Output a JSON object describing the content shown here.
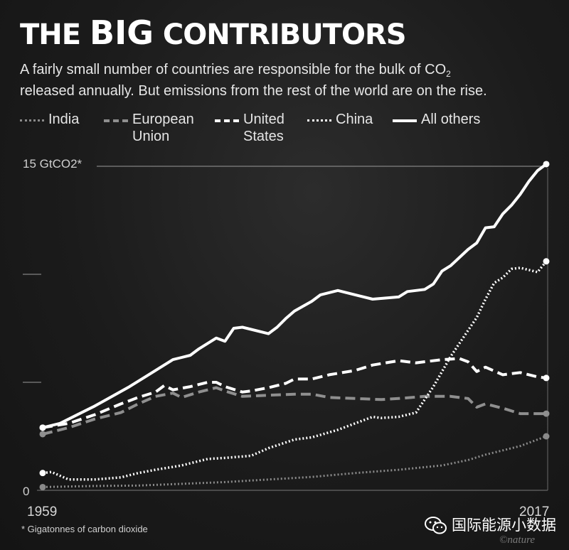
{
  "title": {
    "prefix": "THE",
    "emphasis": "BIG",
    "suffix": "CONTRIBUTORS"
  },
  "subtitle": {
    "line1_before": "A fairly small number of countries are responsible for the bulk of CO",
    "line1_sub": "2",
    "line2": "released annually. But emissions from the rest of the world are on the rise."
  },
  "legend": {
    "india": "India",
    "eu_line1": "European",
    "eu_line2": "Union",
    "us_line1": "United",
    "us_line2": "States",
    "china": "China",
    "others": "All others"
  },
  "footnote": "* Gigatonnes of carbon dioxide",
  "credit": "©nature",
  "watermark": "国际能源小数据",
  "colors": {
    "background": "#1b1b1b",
    "primary": "#ffffff",
    "secondary": "#8f8f8f"
  },
  "chart_data": {
    "type": "line",
    "title": "THE BIG CONTRIBUTORS",
    "ylabel": "15 GtCO2*",
    "y_tick_labels": {
      "bottom": "0",
      "top": "15 GtCO2*"
    },
    "x_tick_labels": {
      "start": "1959",
      "end": "2017"
    },
    "xlim": [
      1959,
      2017
    ],
    "ylim": [
      0,
      15
    ],
    "yticks": [
      0,
      5,
      10,
      15
    ],
    "grid": false,
    "legend_position": "top",
    "series": [
      {
        "name": "India",
        "style": "dotted-gray",
        "points": [
          [
            1959,
            0.15
          ],
          [
            1965,
            0.2
          ],
          [
            1970,
            0.22
          ],
          [
            1975,
            0.3
          ],
          [
            1980,
            0.38
          ],
          [
            1985,
            0.5
          ],
          [
            1990,
            0.62
          ],
          [
            1995,
            0.8
          ],
          [
            2000,
            0.95
          ],
          [
            2005,
            1.15
          ],
          [
            2008,
            1.4
          ],
          [
            2010,
            1.65
          ],
          [
            2012,
            1.85
          ],
          [
            2014,
            2.05
          ],
          [
            2017,
            2.5
          ]
        ]
      },
      {
        "name": "European Union",
        "style": "dashed-gray",
        "points": [
          [
            1959,
            2.6
          ],
          [
            1962,
            2.9
          ],
          [
            1965,
            3.3
          ],
          [
            1968,
            3.6
          ],
          [
            1970,
            4.0
          ],
          [
            1972,
            4.35
          ],
          [
            1974,
            4.5
          ],
          [
            1975,
            4.3
          ],
          [
            1977,
            4.55
          ],
          [
            1979,
            4.75
          ],
          [
            1980,
            4.6
          ],
          [
            1982,
            4.35
          ],
          [
            1985,
            4.4
          ],
          [
            1988,
            4.45
          ],
          [
            1990,
            4.45
          ],
          [
            1992,
            4.3
          ],
          [
            1995,
            4.25
          ],
          [
            1998,
            4.2
          ],
          [
            2000,
            4.25
          ],
          [
            2003,
            4.35
          ],
          [
            2006,
            4.35
          ],
          [
            2008,
            4.25
          ],
          [
            2009,
            3.85
          ],
          [
            2010,
            4.0
          ],
          [
            2012,
            3.8
          ],
          [
            2014,
            3.55
          ],
          [
            2017,
            3.55
          ]
        ]
      },
      {
        "name": "United States",
        "style": "dashed-white",
        "points": [
          [
            1959,
            2.9
          ],
          [
            1962,
            3.1
          ],
          [
            1965,
            3.5
          ],
          [
            1968,
            4.0
          ],
          [
            1970,
            4.3
          ],
          [
            1972,
            4.55
          ],
          [
            1973,
            4.85
          ],
          [
            1974,
            4.65
          ],
          [
            1976,
            4.8
          ],
          [
            1978,
            5.0
          ],
          [
            1979,
            5.0
          ],
          [
            1980,
            4.8
          ],
          [
            1982,
            4.55
          ],
          [
            1983,
            4.6
          ],
          [
            1985,
            4.75
          ],
          [
            1987,
            4.95
          ],
          [
            1988,
            5.15
          ],
          [
            1990,
            5.15
          ],
          [
            1992,
            5.35
          ],
          [
            1995,
            5.55
          ],
          [
            1997,
            5.8
          ],
          [
            2000,
            6.0
          ],
          [
            2002,
            5.9
          ],
          [
            2005,
            6.05
          ],
          [
            2007,
            6.1
          ],
          [
            2008,
            5.95
          ],
          [
            2009,
            5.5
          ],
          [
            2010,
            5.7
          ],
          [
            2012,
            5.35
          ],
          [
            2014,
            5.45
          ],
          [
            2016,
            5.25
          ],
          [
            2017,
            5.2
          ]
        ]
      },
      {
        "name": "China",
        "style": "dotted-white",
        "points": [
          [
            1959,
            0.8
          ],
          [
            1960,
            0.85
          ],
          [
            1962,
            0.5
          ],
          [
            1965,
            0.5
          ],
          [
            1968,
            0.6
          ],
          [
            1970,
            0.8
          ],
          [
            1972,
            0.95
          ],
          [
            1975,
            1.15
          ],
          [
            1978,
            1.45
          ],
          [
            1980,
            1.5
          ],
          [
            1983,
            1.6
          ],
          [
            1985,
            1.95
          ],
          [
            1988,
            2.35
          ],
          [
            1990,
            2.45
          ],
          [
            1993,
            2.8
          ],
          [
            1995,
            3.1
          ],
          [
            1997,
            3.4
          ],
          [
            1998,
            3.35
          ],
          [
            2000,
            3.4
          ],
          [
            2002,
            3.6
          ],
          [
            2003,
            4.2
          ],
          [
            2004,
            4.8
          ],
          [
            2005,
            5.5
          ],
          [
            2006,
            6.2
          ],
          [
            2007,
            6.8
          ],
          [
            2008,
            7.4
          ],
          [
            2009,
            8.0
          ],
          [
            2010,
            8.85
          ],
          [
            2011,
            9.6
          ],
          [
            2012,
            9.85
          ],
          [
            2013,
            10.25
          ],
          [
            2014,
            10.3
          ],
          [
            2015,
            10.2
          ],
          [
            2016,
            10.1
          ],
          [
            2017,
            10.6
          ]
        ]
      },
      {
        "name": "All others",
        "style": "solid-white",
        "points": [
          [
            1959,
            2.9
          ],
          [
            1961,
            3.1
          ],
          [
            1963,
            3.5
          ],
          [
            1965,
            3.9
          ],
          [
            1967,
            4.35
          ],
          [
            1969,
            4.8
          ],
          [
            1971,
            5.3
          ],
          [
            1973,
            5.8
          ],
          [
            1974,
            6.05
          ],
          [
            1976,
            6.25
          ],
          [
            1977,
            6.55
          ],
          [
            1978,
            6.8
          ],
          [
            1979,
            7.05
          ],
          [
            1980,
            6.9
          ],
          [
            1981,
            7.5
          ],
          [
            1982,
            7.55
          ],
          [
            1983,
            7.45
          ],
          [
            1985,
            7.25
          ],
          [
            1986,
            7.55
          ],
          [
            1987,
            7.95
          ],
          [
            1988,
            8.3
          ],
          [
            1990,
            8.75
          ],
          [
            1991,
            9.05
          ],
          [
            1993,
            9.25
          ],
          [
            1995,
            9.05
          ],
          [
            1997,
            8.85
          ],
          [
            2000,
            8.95
          ],
          [
            2001,
            9.2
          ],
          [
            2003,
            9.3
          ],
          [
            2004,
            9.55
          ],
          [
            2005,
            10.15
          ],
          [
            2006,
            10.4
          ],
          [
            2008,
            11.15
          ],
          [
            2009,
            11.45
          ],
          [
            2010,
            12.15
          ],
          [
            2011,
            12.2
          ],
          [
            2012,
            12.8
          ],
          [
            2013,
            13.2
          ],
          [
            2014,
            13.7
          ],
          [
            2015,
            14.3
          ],
          [
            2016,
            14.8
          ],
          [
            2017,
            15.1
          ]
        ]
      }
    ]
  }
}
